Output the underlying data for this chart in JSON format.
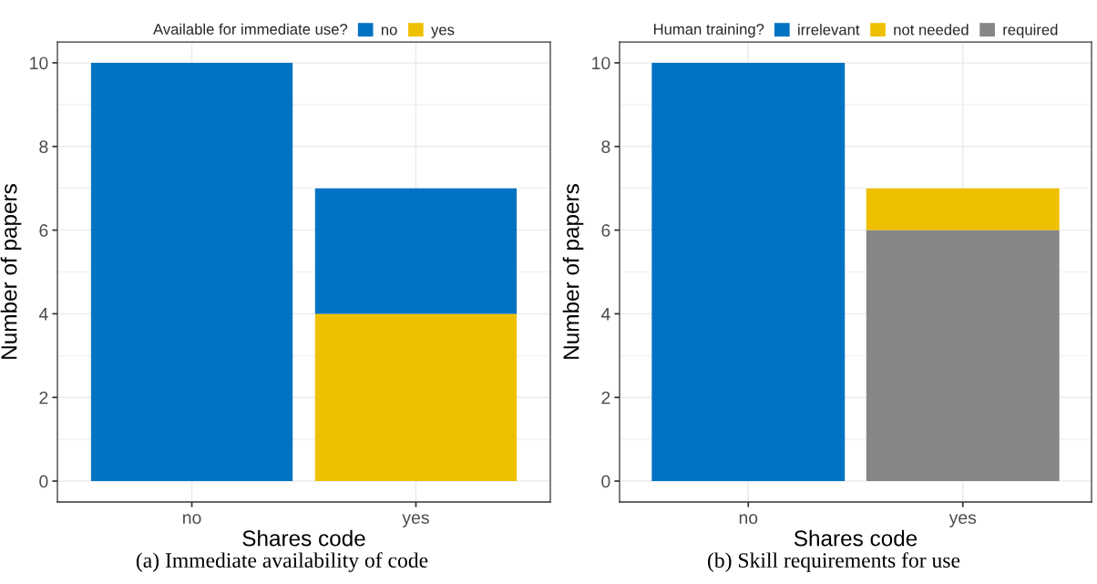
{
  "chart_data": [
    {
      "type": "bar",
      "stacked": true,
      "legend_title": "Available for immediate use?",
      "legend": "top",
      "xlabel": "Shares code",
      "ylabel": "Number of papers",
      "categories": [
        "no",
        "yes"
      ],
      "series": [
        {
          "name": "yes",
          "color": "#efc000",
          "values": [
            null,
            4
          ]
        },
        {
          "name": "no",
          "color": "#0073c2",
          "values": [
            10,
            3
          ]
        }
      ],
      "ylim": [
        -0.5,
        10.5
      ],
      "yticks": [
        0,
        2,
        4,
        6,
        8,
        10
      ],
      "grid": true,
      "annotations": [
        "(a) Immediate availability of code"
      ]
    },
    {
      "type": "bar",
      "stacked": true,
      "legend_title": "Human training?",
      "legend": "top",
      "xlabel": "Shares code",
      "ylabel": "Number of papers",
      "categories": [
        "no",
        "yes"
      ],
      "series": [
        {
          "name": "required",
          "color": "#868686",
          "values": [
            null,
            6
          ]
        },
        {
          "name": "not needed",
          "color": "#efc000",
          "values": [
            null,
            1
          ]
        },
        {
          "name": "irrelevant",
          "color": "#0073c2",
          "values": [
            10,
            null
          ]
        }
      ],
      "ylim": [
        -0.5,
        10.5
      ],
      "yticks": [
        0,
        2,
        4,
        6,
        8,
        10
      ],
      "grid": true,
      "annotations": [
        "(b) Skill requirements for use"
      ]
    }
  ]
}
